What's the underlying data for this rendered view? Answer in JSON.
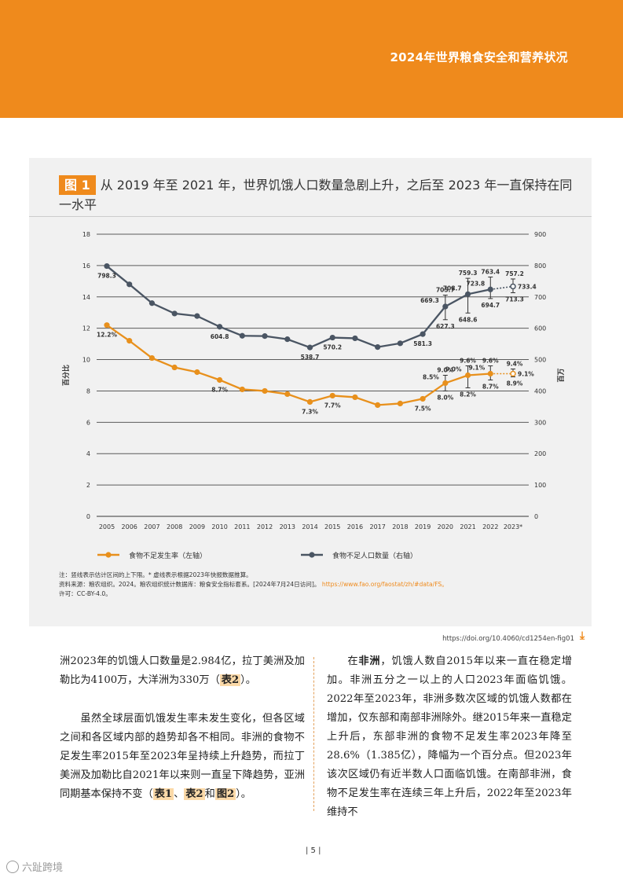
{
  "header": {
    "title": "2024年世界粮食安全和营养状况"
  },
  "figure": {
    "tag": "图 1",
    "title": "从 2019 年至 2021 年，世界饥饿人口数量急剧上升，之后至 2023 年一直保持在同一水平",
    "note": "注：竖线表示估计区间的上下限。* 虚线表示根据2023年快报数据推算。",
    "source_prefix": "资料来源：粮农组织。2024。粮农组织统计数据库：粮食安全指标套系。[2024年7月24日访问]。",
    "source_url": "https://www.fao.org/faostat/zh/#data/FS。",
    "license": "许可：CC-BY-4.0。"
  },
  "chart_data": {
    "type": "line",
    "x": [
      "2005",
      "2006",
      "2007",
      "2008",
      "2009",
      "2010",
      "2011",
      "2012",
      "2013",
      "2014",
      "2015",
      "2016",
      "2017",
      "2018",
      "2019",
      "2020",
      "2021",
      "2022",
      "2023*"
    ],
    "y_left": {
      "label": "百分比",
      "ticks": [
        0,
        2,
        4,
        6,
        8,
        10,
        12,
        14,
        16,
        18
      ],
      "ylim": [
        0,
        18
      ]
    },
    "y_right": {
      "label": "百万",
      "ticks": [
        0,
        100,
        200,
        300,
        400,
        500,
        600,
        700,
        800,
        900
      ],
      "ylim": [
        0,
        900
      ]
    },
    "series": [
      {
        "name": "食物不足发生率（左轴）",
        "axis": "left",
        "color": "#e8901c",
        "values": [
          12.2,
          11.2,
          10.1,
          9.5,
          9.2,
          8.7,
          8.1,
          8.0,
          7.8,
          7.3,
          7.7,
          7.6,
          7.1,
          7.2,
          7.5,
          8.5,
          9.0,
          9.1,
          9.1
        ],
        "ci_low": [
          null,
          null,
          null,
          null,
          null,
          null,
          null,
          null,
          null,
          null,
          null,
          null,
          null,
          null,
          null,
          8.0,
          8.2,
          8.7,
          8.9
        ],
        "ci_high": [
          null,
          null,
          null,
          null,
          null,
          null,
          null,
          null,
          null,
          null,
          null,
          null,
          null,
          null,
          null,
          9.0,
          9.6,
          9.6,
          9.4
        ],
        "labels": {
          "0": "12.2%",
          "5": "8.7%",
          "9": "7.3%",
          "10": "7.7%",
          "14": "7.5%"
        },
        "ci_labels": [
          {
            "i": 15,
            "low": "8.0%",
            "mid": "8.5%",
            "high": "9.0%"
          },
          {
            "i": 16,
            "low": "8.2%",
            "mid": "9.0%",
            "high": "9.6%"
          },
          {
            "i": 17,
            "low": "8.7%",
            "mid": "9.1%",
            "high": "9.6%"
          },
          {
            "i": 18,
            "low": "8.9%",
            "mid": "9.1%",
            "high": "9.4%"
          }
        ]
      },
      {
        "name": "食物不足人口数量（右轴）",
        "axis": "right",
        "color": "#4a5563",
        "values": [
          798.3,
          740,
          680,
          647,
          639,
          604.8,
          576,
          575,
          565,
          538.7,
          570.2,
          568,
          540,
          552,
          581.3,
          669.3,
          708.7,
          723.8,
          733.4
        ],
        "ci_low": [
          null,
          null,
          null,
          null,
          null,
          null,
          null,
          null,
          null,
          null,
          null,
          null,
          null,
          null,
          null,
          627.3,
          648.6,
          694.7,
          713.3
        ],
        "ci_high": [
          null,
          null,
          null,
          null,
          null,
          null,
          null,
          null,
          null,
          null,
          null,
          null,
          null,
          null,
          null,
          705.7,
          759.3,
          763.4,
          757.2
        ],
        "labels": {
          "0": "798.3",
          "5": "604.8",
          "9": "538.7",
          "10": "570.2",
          "14": "581.3"
        },
        "ci_labels": [
          {
            "i": 15,
            "low": "627.3",
            "mid": "669.3",
            "high": "705.7"
          },
          {
            "i": 16,
            "low": "648.6",
            "mid": "708.7",
            "high": "759.3"
          },
          {
            "i": 17,
            "low": "694.7",
            "mid": "723.8",
            "high": "763.4"
          },
          {
            "i": 18,
            "low": "713.3",
            "mid": "733.4",
            "high": "757.2"
          }
        ]
      }
    ]
  },
  "doi": "https://doi.org/10.4060/cd1254en-fig01",
  "body": {
    "left_p1_a": "洲2023年的饥饿人口数量是2.984亿，拉丁美洲及加勒比为4100万，大洋洲为330万（",
    "left_p1_ref": "表2",
    "left_p1_b": "）。",
    "left_p2_a": "虽然全球层面饥饿发生率未发生变化，但各区域之间和各区域内部的趋势却各不相同。非洲的食物不足发生率2015年至2023年呈持续上升趋势，而拉丁美洲及加勒比自2021年以来则一直呈下降趋势，亚洲同期基本保持不变（",
    "left_p2_ref1": "表1",
    "left_p2_sep": "、",
    "left_p2_ref2": "表2",
    "left_p2_and": "和",
    "left_p2_ref3": "图2",
    "left_p2_b": "）。",
    "right_p1_a": "在",
    "right_p1_bold": "非洲",
    "right_p1_b": "，饥饿人数自2015年以来一直在稳定增加。非洲五分之一以上的人口2023年面临饥饿。2022年至2023年，非洲多数次区域的饥饿人数都在增加，仅东部和南部非洲除外。继2015年来一直稳定上升后，东部非洲的食物不足发生率2023年降至28.6%（1.385亿），降幅为一个百分点。但2023年该次区域仍有近半数人口面临饥饿。在南部非洲，食物不足发生率在连续三年上升后，2022年至2023年维持不"
  },
  "footer": {
    "page": "| 5 |",
    "watermark": "六趾跨境"
  }
}
